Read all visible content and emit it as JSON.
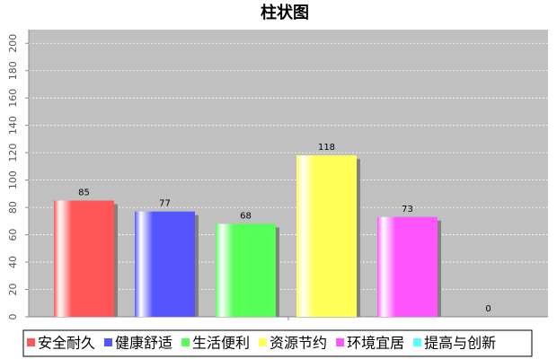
{
  "chart_data": {
    "type": "bar",
    "title": "柱状图",
    "categories": [
      null
    ],
    "series": [
      {
        "name": "安全耐久",
        "color": "#ff5555",
        "values": [
          85
        ]
      },
      {
        "name": "健康舒适",
        "color": "#5555ff",
        "values": [
          77
        ]
      },
      {
        "name": "生活便利",
        "color": "#55ff55",
        "values": [
          68
        ]
      },
      {
        "name": "资源节约",
        "color": "#ffff55",
        "values": [
          118
        ]
      },
      {
        "name": "环境宜居",
        "color": "#ff55ff",
        "values": [
          73
        ]
      },
      {
        "name": "提高与创新",
        "color": "#55ffff",
        "values": [
          0
        ]
      }
    ],
    "ylim": [
      0,
      210
    ],
    "yticks": [
      0,
      20,
      40,
      60,
      80,
      100,
      120,
      140,
      160,
      180,
      200
    ],
    "grid": true,
    "legend": "bottom"
  }
}
